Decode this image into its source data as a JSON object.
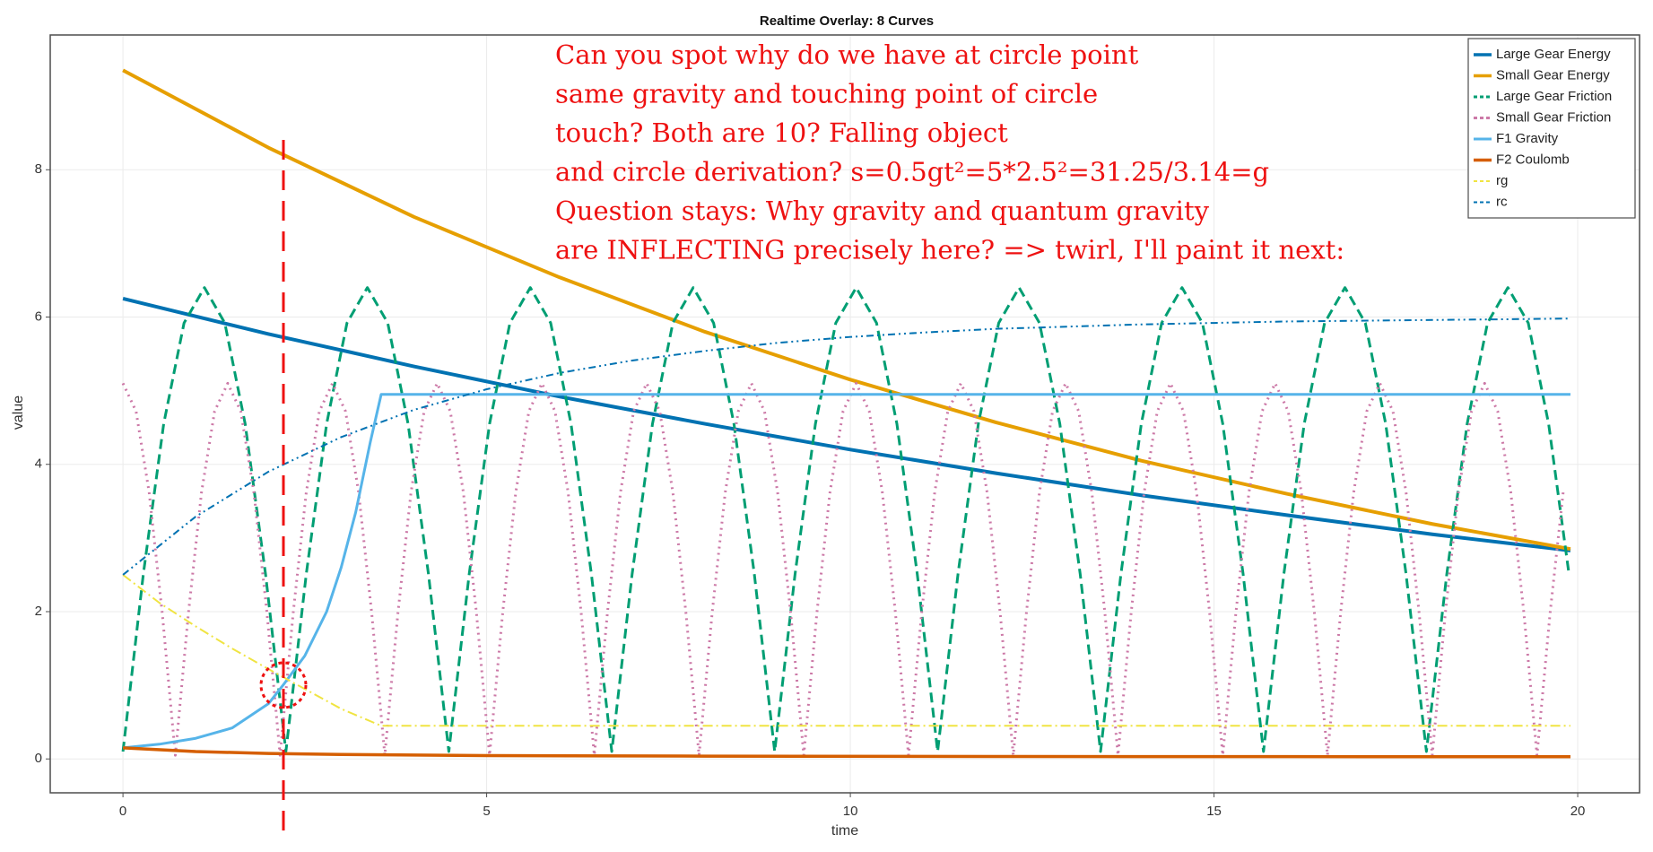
{
  "chart_data": {
    "type": "line",
    "title": "Realtime Overlay: 8 Curves",
    "x_label": "time",
    "y_label": "value",
    "xlim": [
      -1,
      20.85
    ],
    "ylim": [
      -0.46,
      9.83
    ],
    "xticks": [
      0,
      5,
      10,
      15,
      20
    ],
    "yticks": [
      0,
      2,
      4,
      6,
      8
    ],
    "grid": true,
    "legend": "top-right",
    "annotation_lines": [
      "Can you spot why do we have at circle point",
      "same gravity and touching point of circle",
      "touch? Both are 10? Falling object",
      "and circle derivation? s=0.5gt²=5*2.5²=31.25/3.14=g",
      "Question stays: Why gravity and quantum gravity",
      "are INFLECTING precisely here? => twirl, I'll paint it next:"
    ],
    "series": [
      {
        "name": "Large Gear Energy",
        "color": "#0072b2",
        "style": "solid",
        "linewidth": 4,
        "x": [
          0,
          2,
          4,
          6,
          8,
          10,
          12,
          14,
          16,
          18,
          19.9
        ],
        "values": [
          6.25,
          5.77,
          5.33,
          4.92,
          4.55,
          4.2,
          3.88,
          3.58,
          3.31,
          3.05,
          2.83
        ]
      },
      {
        "name": "Small Gear Energy",
        "color": "#e69f00",
        "style": "solid",
        "linewidth": 4,
        "x": [
          0,
          2,
          4,
          6,
          8,
          10,
          12,
          14,
          16,
          18,
          19.9
        ],
        "values": [
          9.35,
          8.3,
          7.36,
          6.54,
          5.8,
          5.15,
          4.57,
          4.05,
          3.6,
          3.19,
          2.85
        ]
      },
      {
        "name": "Large Gear Friction",
        "color": "#009e73",
        "style": "dashed",
        "linewidth": 3,
        "x": [
          0,
          0.28,
          0.56,
          0.84,
          1.12,
          1.4,
          1.68,
          1.96,
          2.24,
          2.52,
          2.8,
          3.08,
          3.36,
          3.64,
          3.92,
          4.2,
          4.48,
          4.76,
          5.04,
          5.32,
          5.6,
          5.88,
          6.16,
          6.44,
          6.72,
          7,
          7.28,
          7.56,
          7.84,
          8.12,
          8.4,
          8.68,
          8.96,
          9.24,
          9.52,
          9.8,
          10.08,
          10.36,
          10.64,
          10.92,
          11.2,
          11.48,
          11.76,
          12.04,
          12.32,
          12.6,
          12.88,
          13.16,
          13.44,
          13.72,
          14,
          14.28,
          14.56,
          14.84,
          15.12,
          15.4,
          15.68,
          15.96,
          16.24,
          16.52,
          16.8,
          17.08,
          17.36,
          17.64,
          17.92,
          18.2,
          18.48,
          18.76,
          19.04,
          19.32,
          19.6,
          19.88
        ],
        "values": [
          0.1,
          2.51,
          4.55,
          5.92,
          6.4,
          5.92,
          4.55,
          2.51,
          0.1,
          2.51,
          4.55,
          5.92,
          6.4,
          5.92,
          4.55,
          2.51,
          0.1,
          2.51,
          4.55,
          5.92,
          6.4,
          5.92,
          4.55,
          2.51,
          0.1,
          2.51,
          4.55,
          5.92,
          6.4,
          5.92,
          4.55,
          2.51,
          0.1,
          2.51,
          4.55,
          5.92,
          6.4,
          5.92,
          4.55,
          2.51,
          0.1,
          2.51,
          4.55,
          5.92,
          6.4,
          5.92,
          4.55,
          2.51,
          0.1,
          2.51,
          4.55,
          5.92,
          6.4,
          5.92,
          4.55,
          2.51,
          0.1,
          2.51,
          4.55,
          5.92,
          6.4,
          5.92,
          4.55,
          2.51,
          0.1,
          2.51,
          4.55,
          5.92,
          6.4,
          5.92,
          4.55,
          2.51
        ]
      },
      {
        "name": "Small Gear Friction",
        "color": "#cc79a7",
        "style": "dotted",
        "linewidth": 3,
        "x": [
          0,
          0.18,
          0.36,
          0.54,
          0.72,
          0.9,
          1.08,
          1.26,
          1.44,
          1.62,
          1.8,
          1.98,
          2.16,
          2.34,
          2.52,
          2.7,
          2.88,
          3.06,
          3.24,
          3.42,
          3.6,
          3.78,
          3.96,
          4.14,
          4.32,
          4.5,
          4.68,
          4.86,
          5.04,
          5.22,
          5.4,
          5.58,
          5.76,
          5.94,
          6.12,
          6.3,
          6.48,
          6.66,
          6.84,
          7.02,
          7.2,
          7.38,
          7.56,
          7.74,
          7.92,
          8.1,
          8.28,
          8.46,
          8.64,
          8.82,
          9,
          9.18,
          9.36,
          9.54,
          9.72,
          9.9,
          10.08,
          10.26,
          10.44,
          10.62,
          10.8,
          10.98,
          11.16,
          11.34,
          11.52,
          11.7,
          11.88,
          12.06,
          12.24,
          12.42,
          12.6,
          12.78,
          12.96,
          13.14,
          13.32,
          13.5,
          13.68,
          13.86,
          14.04,
          14.22,
          14.4,
          14.58,
          14.76,
          14.94,
          15.12,
          15.3,
          15.48,
          15.66,
          15.84,
          16.02,
          16.2,
          16.38,
          16.56,
          16.74,
          16.92,
          17.1,
          17.28,
          17.46,
          17.64,
          17.82,
          18,
          18.18,
          18.36,
          18.54,
          18.72,
          18.9,
          19.08,
          19.26,
          19.44,
          19.62,
          19.8
        ],
        "values": [
          5.1,
          4.72,
          3.62,
          1.98,
          0.05,
          1.98,
          3.62,
          4.72,
          5.1,
          4.72,
          3.62,
          1.98,
          0.05,
          1.98,
          3.62,
          4.72,
          5.1,
          4.72,
          3.62,
          1.98,
          0.05,
          1.98,
          3.62,
          4.72,
          5.1,
          4.72,
          3.62,
          1.98,
          0.05,
          1.98,
          3.62,
          4.72,
          5.1,
          4.72,
          3.62,
          1.98,
          0.05,
          1.98,
          3.62,
          4.72,
          5.1,
          4.72,
          3.62,
          1.98,
          0.05,
          1.98,
          3.62,
          4.72,
          5.1,
          4.72,
          3.62,
          1.98,
          0.05,
          1.98,
          3.62,
          4.72,
          5.1,
          4.72,
          3.62,
          1.98,
          0.05,
          1.98,
          3.62,
          4.72,
          5.1,
          4.72,
          3.62,
          1.98,
          0.05,
          1.98,
          3.62,
          4.72,
          5.1,
          4.72,
          3.62,
          1.98,
          0.05,
          1.98,
          3.62,
          4.72,
          5.1,
          4.72,
          3.62,
          1.98,
          0.05,
          1.98,
          3.62,
          4.72,
          5.1,
          4.72,
          3.62,
          1.98,
          0.05,
          1.98,
          3.62,
          4.72,
          5.1,
          4.72,
          3.62,
          1.98,
          0.05,
          1.98,
          3.62,
          4.72,
          5.1,
          4.72,
          3.62,
          1.98,
          0.05,
          1.98,
          3.62
        ]
      },
      {
        "name": "F1 Gravity",
        "color": "#56b4e9",
        "style": "solid",
        "linewidth": 3,
        "x": [
          0,
          0.5,
          1,
          1.5,
          2,
          2.2,
          2.5,
          2.8,
          3,
          3.2,
          3.4,
          3.55,
          19.9
        ],
        "values": [
          0.15,
          0.2,
          0.28,
          0.42,
          0.75,
          1.0,
          1.4,
          2.0,
          2.6,
          3.35,
          4.3,
          4.95,
          4.95
        ]
      },
      {
        "name": "F2 Coulomb",
        "color": "#d55e00",
        "style": "solid",
        "linewidth": 3.5,
        "x": [
          0,
          1,
          2,
          3,
          5,
          8,
          12,
          16,
          19.9
        ],
        "values": [
          0.15,
          0.1,
          0.075,
          0.06,
          0.045,
          0.038,
          0.033,
          0.031,
          0.03
        ]
      },
      {
        "name": "rg",
        "color": "#f0e442",
        "style": "dashdot",
        "linewidth": 2,
        "x": [
          0,
          0.5,
          1,
          1.5,
          2,
          2.5,
          3,
          3.55,
          19.9
        ],
        "values": [
          2.5,
          2.12,
          1.8,
          1.5,
          1.22,
          0.95,
          0.68,
          0.45,
          0.45
        ]
      },
      {
        "name": "rc",
        "color": "#0072b2",
        "style": "dashdotdot",
        "linewidth": 2,
        "x": [
          0,
          1,
          2,
          3,
          4,
          5,
          6,
          7,
          8,
          9,
          10,
          11,
          12,
          13,
          14,
          15,
          16,
          17,
          18,
          19,
          19.9
        ],
        "values": [
          2.5,
          3.29,
          3.9,
          4.37,
          4.74,
          5.02,
          5.24,
          5.41,
          5.54,
          5.65,
          5.73,
          5.79,
          5.84,
          5.87,
          5.9,
          5.92,
          5.94,
          5.95,
          5.96,
          5.97,
          5.98
        ]
      }
    ]
  }
}
